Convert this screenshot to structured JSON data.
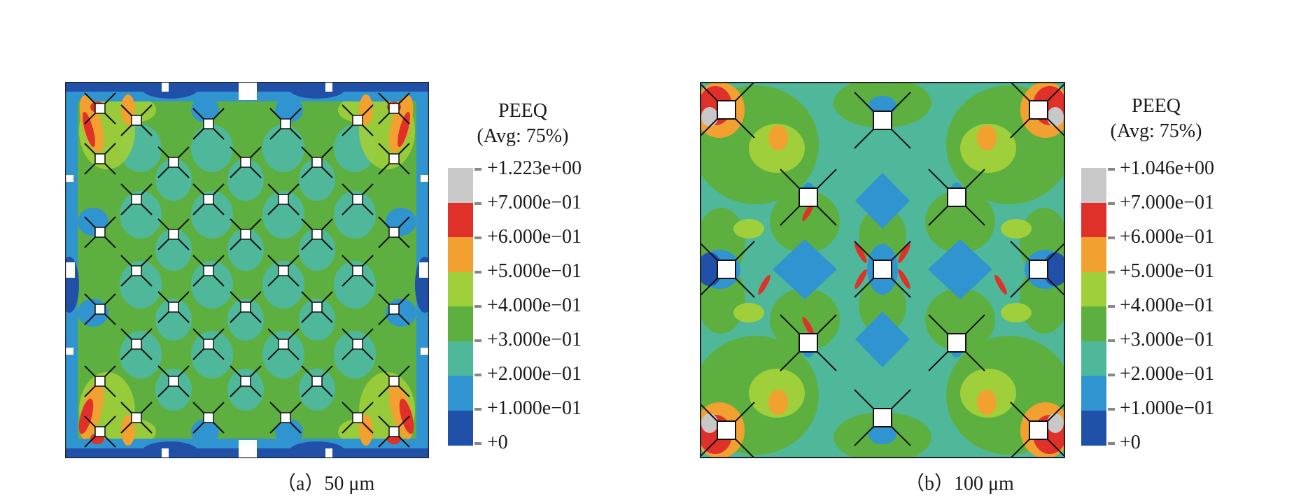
{
  "panels": [
    {
      "caption": "（a）50 μm",
      "legend": {
        "title_line1": "PEEQ",
        "title_line2": "(Avg: 75%)",
        "ticks": [
          "+1.223e+00",
          "+7.000e−01",
          "+6.000e−01",
          "+5.000e−01",
          "+4.000e−01",
          "+3.000e−01",
          "+2.000e−01",
          "+1.000e−01",
          "+0"
        ],
        "colors": [
          "#c8c8c8",
          "#e0302a",
          "#f2a030",
          "#9fcf3a",
          "#5db040",
          "#4fb89a",
          "#2f94d0",
          "#2050a8"
        ]
      }
    },
    {
      "caption": "（b）100 μm",
      "legend": {
        "title_line1": "PEEQ",
        "title_line2": "(Avg: 75%)",
        "ticks": [
          "+1.046e+00",
          "+7.000e−01",
          "+6.000e−01",
          "+5.000e−01",
          "+4.000e−01",
          "+3.000e−01",
          "+2.000e−01",
          "+1.000e−01",
          "+0"
        ],
        "colors": [
          "#c8c8c8",
          "#e0302a",
          "#f2a030",
          "#9fcf3a",
          "#5db040",
          "#4fb89a",
          "#2f94d0",
          "#2050a8"
        ]
      }
    }
  ]
}
